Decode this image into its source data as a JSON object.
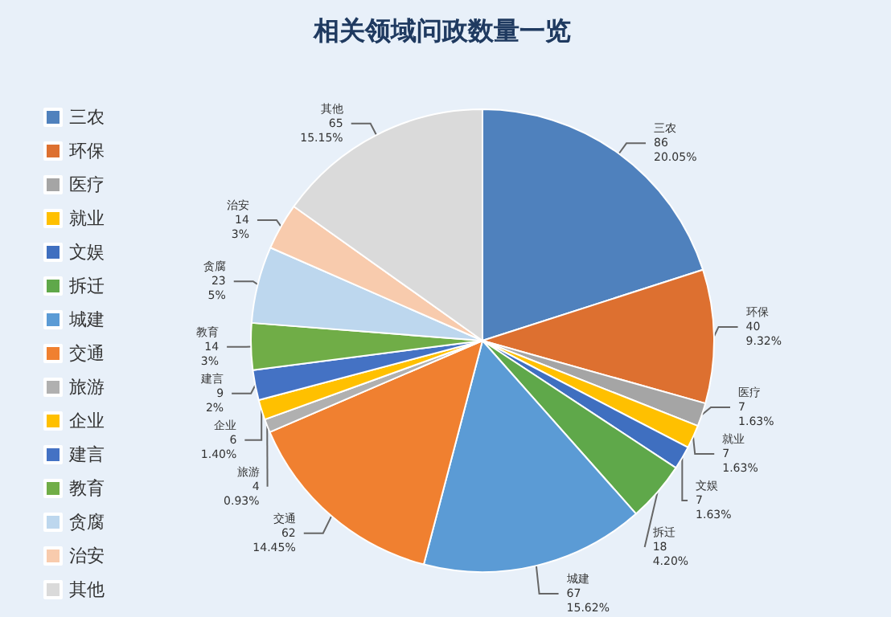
{
  "chart_data": {
    "type": "pie",
    "title": "相关领域问政数量一览",
    "categories": [
      "三农",
      "环保",
      "医疗",
      "就业",
      "文娱",
      "拆迁",
      "城建",
      "交通",
      "旅游",
      "企业",
      "建言",
      "教育",
      "贪腐",
      "治安",
      "其他"
    ],
    "values": [
      86,
      40,
      7,
      7,
      7,
      18,
      67,
      62,
      4,
      6,
      9,
      14,
      23,
      14,
      65
    ],
    "value_labels": [
      "86\n20.05%",
      "40\n9.32%",
      "7\n1.63%",
      "7\n1.63%",
      "7\n1.63%",
      "18\n4.20%",
      "67\n15.62%",
      "62\n14.45%",
      "4\n0.93%",
      "6\n1.40%",
      "9\n2%",
      "14\n3%",
      "23\n5%",
      "14\n3%",
      "65\n15.15%"
    ],
    "colors": [
      "#4f81bd",
      "#dd7030",
      "#a5a5a5",
      "#ffc000",
      "#3f6fc0",
      "#5fa84a",
      "#5b9bd5",
      "#f08030",
      "#b0b0b0",
      "#ffc000",
      "#4472c4",
      "#70ad47",
      "#bdd7ee",
      "#f8cbad",
      "#dadada"
    ],
    "legend": "left"
  }
}
